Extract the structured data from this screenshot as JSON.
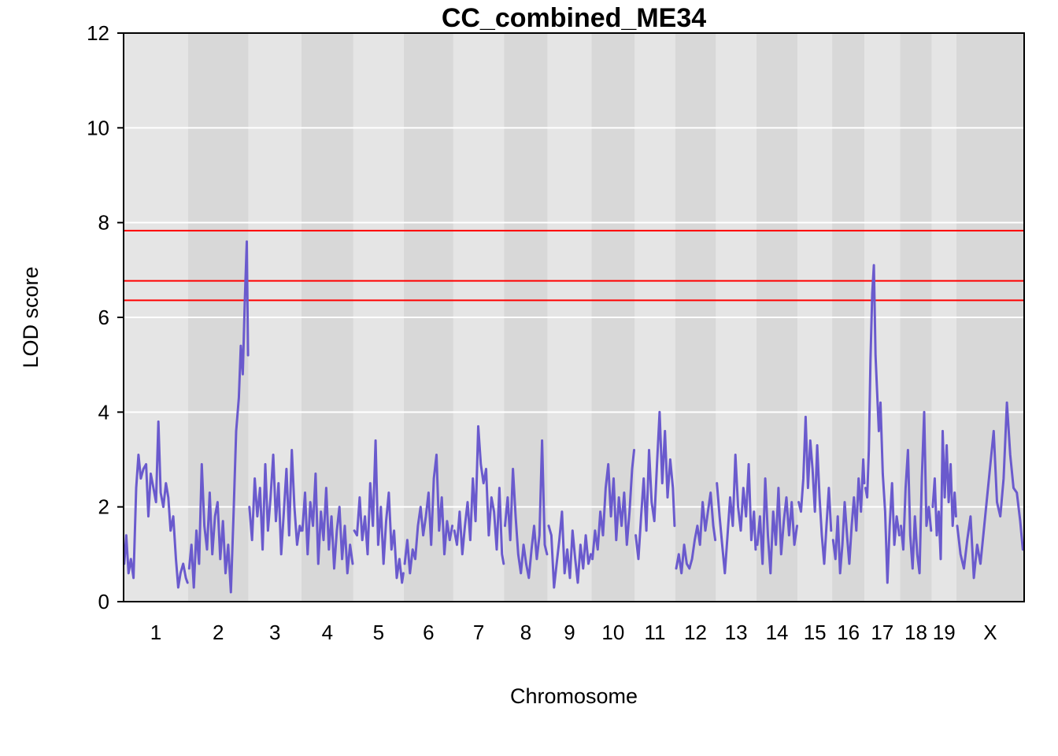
{
  "chart_data": {
    "type": "line",
    "title": "CC_combined_ME34",
    "xlabel": "Chromosome",
    "ylabel": "LOD score",
    "ylim": [
      0,
      12
    ],
    "yticks": [
      0,
      2,
      4,
      6,
      8,
      10,
      12
    ],
    "grid": true,
    "grid_lines_y": [
      2,
      4,
      6,
      8,
      10
    ],
    "colors": {
      "band_light": "#e5e5e5",
      "band_dark": "#d8d8d8",
      "grid": "#ffffff",
      "line": "#6a5acd",
      "threshold": "#ff0000"
    },
    "thresholds": [
      7.83,
      6.77,
      6.36
    ],
    "chromosomes": [
      {
        "name": "1",
        "start": 0,
        "end": 195
      },
      {
        "name": "2",
        "start": 195,
        "end": 377
      },
      {
        "name": "3",
        "start": 377,
        "end": 537
      },
      {
        "name": "4",
        "start": 537,
        "end": 694
      },
      {
        "name": "5",
        "start": 694,
        "end": 846
      },
      {
        "name": "6",
        "start": 846,
        "end": 996
      },
      {
        "name": "7",
        "start": 996,
        "end": 1149
      },
      {
        "name": "8",
        "start": 1149,
        "end": 1281
      },
      {
        "name": "9",
        "start": 1281,
        "end": 1413
      },
      {
        "name": "10",
        "start": 1413,
        "end": 1544
      },
      {
        "name": "11",
        "start": 1544,
        "end": 1666
      },
      {
        "name": "12",
        "start": 1666,
        "end": 1789
      },
      {
        "name": "13",
        "start": 1789,
        "end": 1911
      },
      {
        "name": "14",
        "start": 1911,
        "end": 2036
      },
      {
        "name": "15",
        "start": 2036,
        "end": 2140
      },
      {
        "name": "16",
        "start": 2140,
        "end": 2238
      },
      {
        "name": "17",
        "start": 2238,
        "end": 2345
      },
      {
        "name": "18",
        "start": 2345,
        "end": 2441
      },
      {
        "name": "19",
        "start": 2441,
        "end": 2515
      },
      {
        "name": "X",
        "start": 2515,
        "end": 2720
      }
    ],
    "series": [
      {
        "chromosome": "1",
        "x": [
          2,
          8,
          15,
          22,
          30,
          38,
          45,
          52,
          60,
          68,
          75,
          82,
          90,
          98,
          105,
          112,
          120,
          128,
          135,
          142,
          150,
          158,
          165,
          172,
          180,
          188,
          193
        ],
        "y": [
          0.8,
          1.4,
          0.6,
          0.9,
          0.5,
          2.4,
          3.1,
          2.6,
          2.8,
          2.9,
          1.8,
          2.7,
          2.4,
          2.1,
          3.8,
          2.3,
          2.0,
          2.5,
          2.2,
          1.5,
          1.8,
          0.9,
          0.3,
          0.6,
          0.8,
          0.5,
          0.4
        ]
      },
      {
        "chromosome": "2",
        "x": [
          198,
          205,
          212,
          220,
          228,
          236,
          244,
          252,
          260,
          268,
          276,
          284,
          292,
          300,
          308,
          316,
          324,
          332,
          340,
          348,
          354,
          360,
          366,
          372,
          376
        ],
        "y": [
          0.7,
          1.2,
          0.3,
          1.5,
          0.8,
          2.9,
          1.6,
          1.1,
          2.3,
          1.0,
          1.8,
          2.1,
          0.9,
          1.7,
          0.6,
          1.2,
          0.2,
          1.8,
          3.6,
          4.3,
          5.4,
          4.8,
          6.3,
          7.6,
          5.2
        ]
      },
      {
        "chromosome": "3",
        "x": [
          380,
          388,
          396,
          404,
          412,
          420,
          428,
          436,
          444,
          452,
          460,
          468,
          476,
          484,
          492,
          500,
          508,
          516,
          524,
          532,
          536
        ],
        "y": [
          2.0,
          1.3,
          2.6,
          1.8,
          2.4,
          1.1,
          2.9,
          1.5,
          2.2,
          3.1,
          1.7,
          2.5,
          1.0,
          1.9,
          2.8,
          1.4,
          3.2,
          2.0,
          1.2,
          1.6,
          1.5
        ]
      },
      {
        "chromosome": "4",
        "x": [
          540,
          548,
          556,
          564,
          572,
          580,
          588,
          596,
          604,
          612,
          620,
          628,
          636,
          644,
          652,
          660,
          668,
          676,
          684,
          692
        ],
        "y": [
          1.5,
          2.3,
          1.0,
          2.1,
          1.6,
          2.7,
          0.8,
          1.9,
          1.3,
          2.4,
          1.1,
          1.8,
          0.7,
          1.5,
          2.0,
          0.9,
          1.6,
          0.6,
          1.2,
          0.8
        ]
      },
      {
        "chromosome": "5",
        "x": [
          697,
          705,
          713,
          721,
          729,
          737,
          745,
          753,
          761,
          769,
          777,
          785,
          793,
          801,
          809,
          817,
          825,
          833,
          841,
          845
        ],
        "y": [
          1.5,
          1.4,
          2.2,
          1.3,
          1.8,
          1.0,
          2.5,
          1.6,
          3.4,
          1.2,
          2.0,
          0.8,
          1.7,
          2.3,
          1.1,
          1.5,
          0.5,
          0.9,
          0.4,
          0.6
        ]
      },
      {
        "chromosome": "6",
        "x": [
          849,
          857,
          865,
          873,
          881,
          889,
          897,
          905,
          913,
          921,
          929,
          937,
          945,
          953,
          961,
          969,
          977,
          985,
          993
        ],
        "y": [
          0.8,
          1.3,
          0.6,
          1.1,
          0.9,
          1.6,
          2.0,
          1.4,
          1.8,
          2.3,
          1.2,
          2.6,
          3.1,
          1.5,
          2.2,
          1.0,
          1.7,
          1.3,
          1.6
        ]
      },
      {
        "chromosome": "7",
        "x": [
          999,
          1007,
          1015,
          1023,
          1031,
          1039,
          1047,
          1055,
          1063,
          1071,
          1079,
          1087,
          1095,
          1103,
          1111,
          1119,
          1127,
          1135,
          1143,
          1148
        ],
        "y": [
          1.5,
          1.2,
          1.9,
          1.0,
          1.6,
          2.1,
          1.3,
          2.6,
          1.7,
          3.7,
          2.9,
          2.5,
          2.8,
          1.4,
          2.2,
          1.9,
          1.1,
          2.4,
          1.0,
          0.8
        ]
      },
      {
        "chromosome": "8",
        "x": [
          1152,
          1160,
          1168,
          1176,
          1184,
          1192,
          1200,
          1208,
          1216,
          1224,
          1232,
          1240,
          1248,
          1256,
          1264,
          1272,
          1279
        ],
        "y": [
          1.6,
          2.2,
          1.3,
          2.8,
          1.8,
          1.0,
          0.6,
          1.2,
          0.8,
          0.5,
          1.1,
          1.6,
          0.9,
          1.4,
          3.4,
          1.2,
          1.0
        ]
      },
      {
        "chromosome": "9",
        "x": [
          1284,
          1292,
          1300,
          1308,
          1316,
          1324,
          1332,
          1340,
          1348,
          1356,
          1364,
          1372,
          1380,
          1388,
          1396,
          1404,
          1411
        ],
        "y": [
          1.6,
          1.4,
          0.3,
          0.8,
          1.3,
          1.9,
          0.6,
          1.1,
          0.5,
          1.5,
          0.9,
          0.4,
          1.2,
          0.7,
          1.4,
          0.8,
          1.0
        ]
      },
      {
        "chromosome": "10",
        "x": [
          1416,
          1424,
          1432,
          1440,
          1448,
          1456,
          1464,
          1472,
          1480,
          1488,
          1496,
          1504,
          1512,
          1520,
          1528,
          1536,
          1542
        ],
        "y": [
          0.9,
          1.5,
          1.1,
          1.9,
          1.4,
          2.4,
          2.9,
          1.8,
          2.6,
          1.3,
          2.2,
          1.6,
          2.3,
          1.2,
          1.9,
          2.8,
          3.2
        ]
      },
      {
        "chromosome": "11",
        "x": [
          1547,
          1555,
          1563,
          1571,
          1579,
          1587,
          1595,
          1603,
          1611,
          1619,
          1627,
          1635,
          1643,
          1651,
          1659,
          1664
        ],
        "y": [
          1.4,
          0.9,
          1.8,
          2.6,
          1.5,
          3.2,
          2.1,
          1.7,
          2.9,
          4.0,
          2.5,
          3.6,
          2.2,
          3.0,
          2.4,
          1.6
        ]
      },
      {
        "chromosome": "12",
        "x": [
          1669,
          1677,
          1685,
          1693,
          1701,
          1709,
          1717,
          1725,
          1733,
          1741,
          1749,
          1757,
          1765,
          1773,
          1781,
          1787
        ],
        "y": [
          0.7,
          1.0,
          0.6,
          1.2,
          0.8,
          0.7,
          0.9,
          1.3,
          1.6,
          1.2,
          2.1,
          1.5,
          1.9,
          2.3,
          1.6,
          1.3
        ]
      },
      {
        "chromosome": "13",
        "x": [
          1792,
          1800,
          1808,
          1816,
          1824,
          1832,
          1840,
          1848,
          1856,
          1864,
          1872,
          1880,
          1888,
          1896,
          1904,
          1909
        ],
        "y": [
          2.5,
          1.8,
          1.2,
          0.6,
          1.4,
          2.2,
          1.6,
          3.1,
          2.0,
          1.5,
          2.4,
          1.8,
          2.9,
          1.3,
          1.9,
          1.1
        ]
      },
      {
        "chromosome": "14",
        "x": [
          1914,
          1922,
          1930,
          1938,
          1946,
          1954,
          1962,
          1970,
          1978,
          1986,
          1994,
          2002,
          2010,
          2018,
          2026,
          2034
        ],
        "y": [
          1.2,
          1.8,
          0.8,
          2.6,
          1.4,
          0.6,
          1.9,
          1.2,
          2.4,
          1.0,
          1.7,
          2.2,
          1.4,
          2.1,
          1.2,
          1.6
        ]
      },
      {
        "chromosome": "15",
        "x": [
          2039,
          2046,
          2053,
          2060,
          2067,
          2074,
          2081,
          2088,
          2095,
          2102,
          2109,
          2116,
          2123,
          2130,
          2137
        ],
        "y": [
          2.1,
          1.9,
          2.6,
          3.9,
          2.4,
          3.4,
          2.8,
          1.9,
          3.3,
          2.2,
          1.4,
          0.8,
          1.6,
          2.4,
          1.5
        ]
      },
      {
        "chromosome": "16",
        "x": [
          2143,
          2150,
          2157,
          2164,
          2171,
          2178,
          2185,
          2192,
          2199,
          2206,
          2213,
          2220,
          2227,
          2234,
          2237
        ],
        "y": [
          1.3,
          0.9,
          1.8,
          0.6,
          1.2,
          2.1,
          1.4,
          0.8,
          1.6,
          2.2,
          1.5,
          2.6,
          1.9,
          3.0,
          2.5
        ]
      },
      {
        "chromosome": "17",
        "x": [
          2241,
          2246,
          2251,
          2256,
          2261,
          2266,
          2271,
          2276,
          2281,
          2286,
          2293,
          2300,
          2307,
          2314,
          2321,
          2328,
          2335,
          2343
        ],
        "y": [
          2.4,
          2.2,
          3.2,
          5.1,
          6.5,
          7.1,
          5.2,
          4.4,
          3.6,
          4.2,
          2.7,
          1.9,
          0.4,
          1.6,
          2.5,
          1.2,
          1.8,
          1.4
        ]
      },
      {
        "chromosome": "18",
        "x": [
          2348,
          2355,
          2362,
          2369,
          2376,
          2383,
          2390,
          2397,
          2404,
          2411,
          2418,
          2425,
          2432,
          2439
        ],
        "y": [
          1.6,
          1.1,
          2.4,
          3.2,
          1.4,
          0.7,
          1.8,
          1.0,
          0.6,
          2.6,
          4.0,
          1.6,
          2.0,
          1.5
        ]
      },
      {
        "chromosome": "19",
        "x": [
          2444,
          2450,
          2456,
          2462,
          2468,
          2474,
          2480,
          2486,
          2492,
          2498,
          2504,
          2510,
          2514
        ],
        "y": [
          2.0,
          2.6,
          1.4,
          1.9,
          0.9,
          3.6,
          2.2,
          3.3,
          2.1,
          2.9,
          1.6,
          2.3,
          1.8
        ]
      },
      {
        "chromosome": "X",
        "x": [
          2518,
          2528,
          2538,
          2548,
          2558,
          2568,
          2578,
          2588,
          2598,
          2608,
          2618,
          2628,
          2638,
          2648,
          2658,
          2668,
          2678,
          2688,
          2698,
          2708,
          2716
        ],
        "y": [
          1.6,
          1.0,
          0.7,
          1.3,
          1.8,
          0.5,
          1.2,
          0.8,
          1.5,
          2.2,
          2.9,
          3.6,
          2.1,
          1.8,
          2.6,
          4.2,
          3.1,
          2.4,
          2.3,
          1.7,
          1.1
        ]
      }
    ]
  }
}
